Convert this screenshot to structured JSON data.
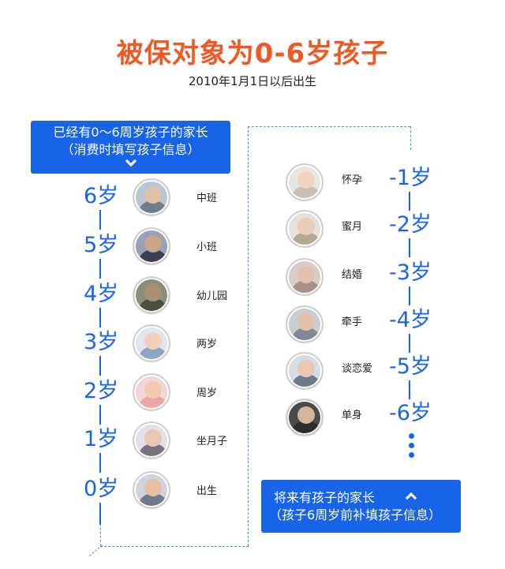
{
  "header": {
    "title": "被保对象为0-6岁孩子",
    "subtitle": "2010年1月1日以后出生"
  },
  "left_banner": {
    "line1": "已经有0～6周岁孩子的家长",
    "line2": "（消费时填写孩子信息）",
    "icon": "chevron-down-icon"
  },
  "right_banner": {
    "line1": "将来有孩子的家长",
    "line2": "（孩子6周岁前补填孩子信息）",
    "icon": "chevron-up-icon"
  },
  "left_timeline": [
    {
      "age": "6岁",
      "stage": "中班"
    },
    {
      "age": "5岁",
      "stage": "小班"
    },
    {
      "age": "4岁",
      "stage": "幼儿园"
    },
    {
      "age": "3岁",
      "stage": "两岁"
    },
    {
      "age": "2岁",
      "stage": "周岁"
    },
    {
      "age": "1岁",
      "stage": "坐月子"
    },
    {
      "age": "0岁",
      "stage": "出生"
    }
  ],
  "right_timeline": [
    {
      "age": "-1岁",
      "stage": "怀孕"
    },
    {
      "age": "-2岁",
      "stage": "蜜月"
    },
    {
      "age": "-3岁",
      "stage": "结婚"
    },
    {
      "age": "-4岁",
      "stage": "牵手"
    },
    {
      "age": "-5岁",
      "stage": "谈恋爱"
    },
    {
      "age": "-6岁",
      "stage": "单身"
    }
  ],
  "colors": {
    "title": "#ee5a24",
    "accent": "#1864e8",
    "dashed": "#4a90e2"
  }
}
